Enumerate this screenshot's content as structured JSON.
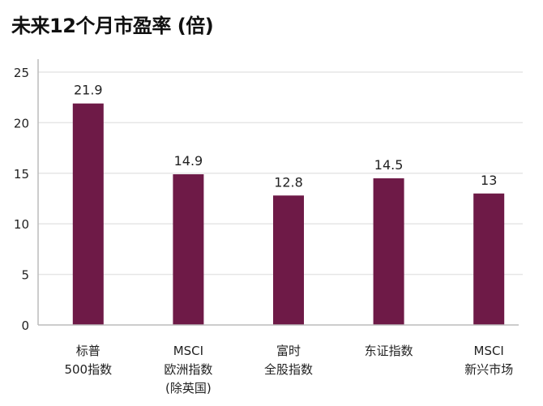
{
  "chart_data": {
    "type": "bar",
    "title": "未来12个月市盈率 (倍)",
    "xlabel": "",
    "ylabel": "",
    "ylim": [
      0,
      25
    ],
    "yticks": [
      "0",
      "5",
      "10",
      "15",
      "20",
      "25"
    ],
    "grid": true,
    "categories": [
      [
        "标普",
        "500指数"
      ],
      [
        "MSCI",
        "欧洲指数",
        "(除英国)"
      ],
      [
        "富时",
        "全股指数"
      ],
      [
        "东证指数"
      ],
      [
        "MSCI",
        "新兴市场"
      ]
    ],
    "values": [
      21.9,
      14.9,
      12.8,
      14.5,
      13
    ],
    "data_labels": [
      "21.9",
      "14.9",
      "12.8",
      "14.5",
      "13"
    ],
    "bar_color": "#6e1a47"
  }
}
